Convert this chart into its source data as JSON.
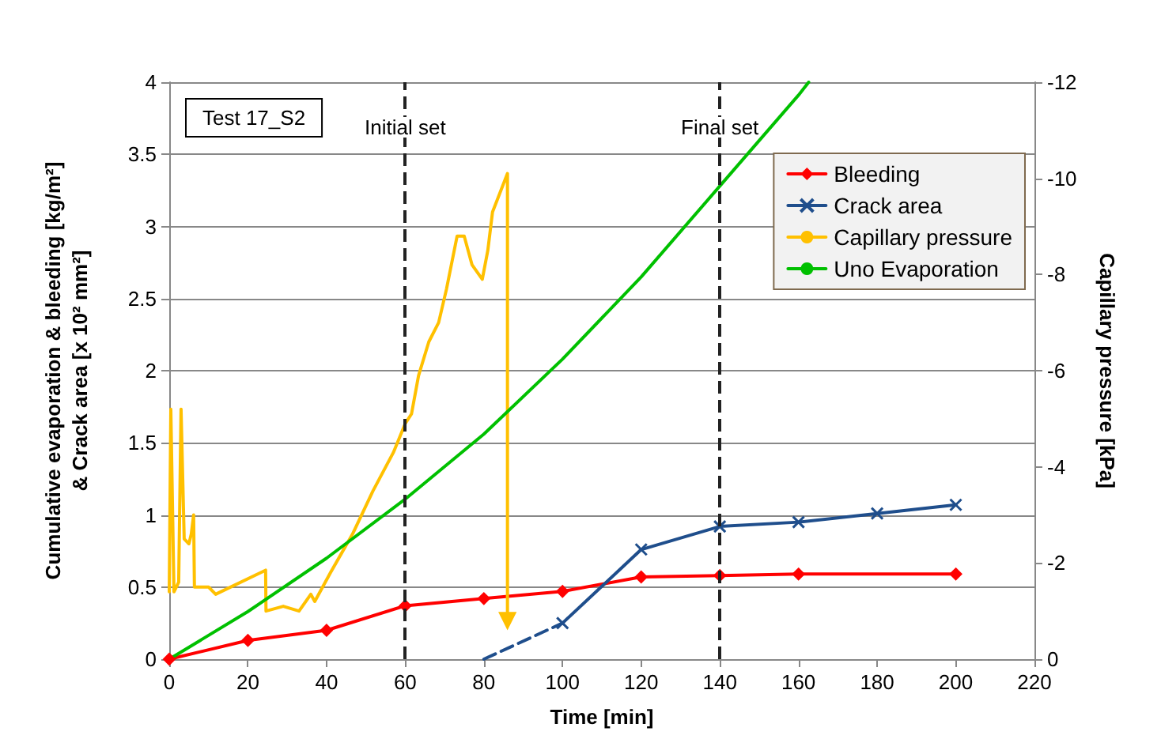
{
  "chart_data": {
    "type": "line",
    "ylabel": "Cumulative evaporation & bleeding [kg/m²]\n& Crack area [x 10² mm²]",
    "xlabel": "Time [min]",
    "y2label": "Capillary pressure [kPa]",
    "annotations": [
      "Test 17_S2"
    ],
    "xlim": [
      0,
      220
    ],
    "xticks": [
      0,
      20,
      40,
      60,
      80,
      100,
      120,
      140,
      160,
      180,
      200,
      220
    ],
    "ylim": [
      0,
      4
    ],
    "yticks": [
      0,
      0.5,
      1,
      1.5,
      2,
      2.5,
      3,
      3.5,
      4
    ],
    "y2lim": [
      0,
      -12
    ],
    "y2ticks": [
      0,
      -2,
      -4,
      -6,
      -8,
      -10,
      -12
    ],
    "grid": "y",
    "legend": "top right",
    "ref_lines": [
      {
        "axis": "x",
        "value": 60,
        "label": "Initial set",
        "color": "#222222",
        "line_style": "dashed"
      },
      {
        "axis": "x",
        "value": 140,
        "label": "Final set",
        "color": "#222222",
        "line_style": "dashed"
      }
    ],
    "series": [
      {
        "name": "Bleeding",
        "color": "#ff0000",
        "marker": "diamond",
        "x": [
          0,
          20,
          40,
          60,
          80,
          100,
          120,
          140,
          160,
          200
        ],
        "values": [
          0,
          0.13,
          0.2,
          0.37,
          0.42,
          0.47,
          0.57,
          0.58,
          0.59,
          0.59
        ]
      },
      {
        "name": "Crack area",
        "color": "#1f4e8c",
        "marker": "cross",
        "x": [
          100,
          120,
          140,
          160,
          180,
          200
        ],
        "values": [
          0.25,
          0.76,
          0.92,
          0.95,
          1.01,
          1.07
        ]
      },
      {
        "color": "#1f4e8c",
        "marker": "none",
        "line_style": "dashed",
        "x": [
          80,
          100
        ],
        "values": [
          0,
          0.25
        ]
      },
      {
        "name": "Capillary pressure",
        "color": "#ffc000",
        "marker": "none",
        "axis": "y2",
        "x": [
          0,
          0.4,
          1.2,
          2.4,
          3,
          3.8,
          5,
          5.6,
          6.2,
          6.4,
          10,
          11.8,
          24.5,
          24.6,
          29,
          33,
          36,
          37,
          41,
          46.6,
          51.8,
          57,
          60,
          61.6,
          63.4,
          66,
          68.5,
          70.5,
          73.2,
          75,
          77,
          79.6,
          81,
          82.2,
          86,
          86
        ],
        "values": [
          -1.4,
          -5.2,
          -1.4,
          -1.6,
          -5.2,
          -2.5,
          -2.4,
          -2.6,
          -3.0,
          -1.5,
          -1.5,
          -1.35,
          -1.85,
          -1.0,
          -1.1,
          -1.0,
          -1.35,
          -1.2,
          -1.8,
          -2.6,
          -3.5,
          -4.3,
          -4.9,
          -5.1,
          -5.9,
          -6.6,
          -7.0,
          -7.7,
          -8.8,
          -8.8,
          -8.2,
          -7.9,
          -8.5,
          -9.3,
          -10.1,
          -0.8
        ]
      },
      {
        "name": "Uno Evaporation",
        "color": "#00c000",
        "marker": "none",
        "x": [
          0,
          20,
          40,
          60,
          80,
          100,
          120,
          140,
          160,
          162.6
        ],
        "values": [
          0,
          0.33,
          0.7,
          1.11,
          1.56,
          2.08,
          2.65,
          3.28,
          3.91,
          4
        ]
      }
    ]
  }
}
